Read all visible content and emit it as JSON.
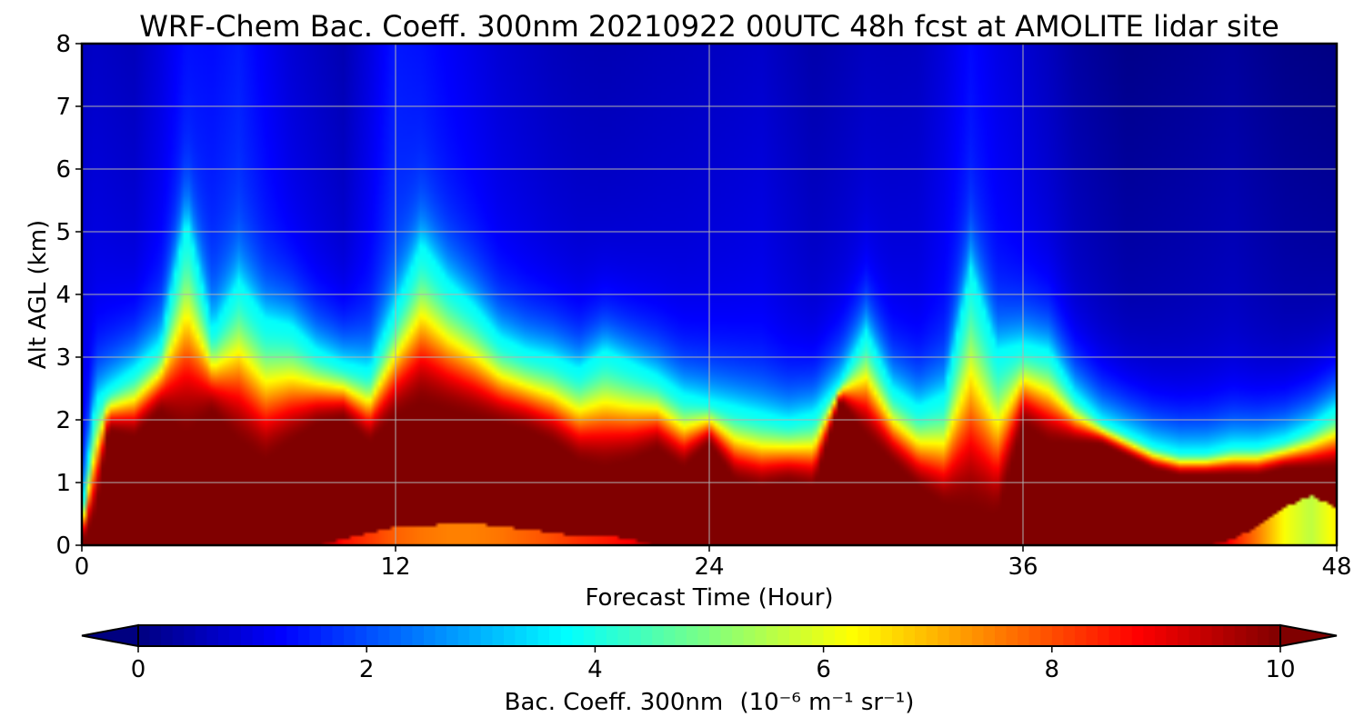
{
  "chart_data": {
    "type": "heatmap",
    "title": "WRF-Chem Bac. Coeff. 300nm  20210922 00UTC 48h fcst at AMOLITE lidar site",
    "xlabel": "Forecast Time (Hour)",
    "ylabel": "Alt AGL (km)",
    "xlim": [
      0,
      48
    ],
    "ylim": [
      0,
      8
    ],
    "xticks": [
      "0",
      "12",
      "24",
      "36",
      "48"
    ],
    "yticks": [
      "0",
      "1",
      "2",
      "3",
      "4",
      "5",
      "6",
      "7",
      "8"
    ],
    "grid": true,
    "colorbar": {
      "label": "Bac. Coeff. 300nm",
      "unit": "(10⁻⁶ m⁻¹ sr⁻¹)",
      "range": [
        0,
        10
      ],
      "ticks": [
        "0",
        "2",
        "4",
        "6",
        "8",
        "10"
      ],
      "extend": "both",
      "colormap": "jet"
    },
    "profiles": {
      "description_keys": [
        "hour",
        "top_of_saturated_layer_km",
        "aerosol_top_km",
        "surface_low_top_km",
        "surface_low_value"
      ],
      "hour": [
        0,
        0.5,
        1,
        2,
        3,
        4,
        5,
        6,
        7,
        8,
        9,
        10,
        11,
        12,
        13,
        14,
        15,
        16,
        17,
        18,
        19,
        20,
        21,
        22,
        23,
        24,
        25,
        26,
        27,
        28,
        29,
        30,
        31,
        32,
        33,
        34,
        35,
        36,
        37,
        38,
        39,
        40,
        41,
        42,
        43,
        44,
        45,
        46,
        47,
        48
      ],
      "saturated_top_km": [
        0.0,
        0.4,
        1.8,
        1.7,
        2.1,
        1.7,
        2.1,
        1.6,
        1.3,
        1.6,
        1.9,
        2.0,
        1.6,
        2.0,
        2.2,
        2.1,
        2.0,
        1.9,
        1.8,
        1.6,
        1.3,
        1.2,
        1.3,
        1.5,
        1.2,
        1.6,
        1.0,
        0.9,
        1.0,
        0.9,
        2.3,
        1.7,
        1.3,
        0.9,
        0.6,
        0.5,
        0.4,
        1.9,
        1.6,
        1.6,
        1.6,
        1.4,
        1.2,
        1.1,
        1.1,
        1.1,
        1.1,
        1.2,
        1.2,
        1.2
      ],
      "aerosol_top_km": [
        0.5,
        2.3,
        2.5,
        2.8,
        3.2,
        5.2,
        3.4,
        4.2,
        3.6,
        3.5,
        3.1,
        2.9,
        2.8,
        3.8,
        4.8,
        4.2,
        3.8,
        3.3,
        3.1,
        3.0,
        2.8,
        3.1,
        2.9,
        2.7,
        2.4,
        2.3,
        2.2,
        2.1,
        2.0,
        2.1,
        2.6,
        3.4,
        2.5,
        2.2,
        2.4,
        4.4,
        3.1,
        3.2,
        3.1,
        2.4,
        2.0,
        1.8,
        1.6,
        1.5,
        1.5,
        1.6,
        1.6,
        1.7,
        1.9,
        2.2
      ],
      "surface_low_top_km": [
        0,
        0,
        0,
        0,
        0,
        0,
        0,
        0,
        0,
        0,
        0,
        0.1,
        0.2,
        0.3,
        0.3,
        0.35,
        0.35,
        0.3,
        0.25,
        0.2,
        0.15,
        0.15,
        0.1,
        0,
        0,
        0,
        0,
        0,
        0,
        0,
        0,
        0,
        0,
        0,
        0,
        0,
        0,
        0,
        0,
        0,
        0,
        0,
        0,
        0,
        0,
        0.1,
        0.3,
        0.6,
        0.8,
        0.6
      ],
      "surface_low_value": [
        10,
        10,
        10,
        10,
        10,
        10,
        10,
        10,
        10,
        10,
        10,
        8.6,
        8.2,
        7.8,
        7.6,
        7.5,
        7.5,
        7.6,
        7.8,
        8.0,
        8.3,
        8.5,
        8.8,
        10,
        10,
        10,
        10,
        10,
        10,
        10,
        10,
        10,
        10,
        10,
        10,
        10,
        10,
        10,
        10,
        10,
        10,
        10,
        10,
        10,
        10,
        8.6,
        7.5,
        6.2,
        5.6,
        6.4
      ]
    },
    "upper_background": {
      "hour": [
        0,
        2,
        4,
        6,
        8,
        10,
        12,
        14,
        16,
        18,
        20,
        22,
        24,
        26,
        28,
        30,
        32,
        34,
        36,
        38,
        40,
        42,
        44,
        46,
        48
      ],
      "value_above_aerosol": [
        1.2,
        1.0,
        1.6,
        1.8,
        1.2,
        0.9,
        1.8,
        1.5,
        1.2,
        1.0,
        0.9,
        1.0,
        1.1,
        1.2,
        0.9,
        1.0,
        1.1,
        1.6,
        1.2,
        0.8,
        0.6,
        0.7,
        0.8,
        0.6,
        0.5
      ]
    }
  }
}
